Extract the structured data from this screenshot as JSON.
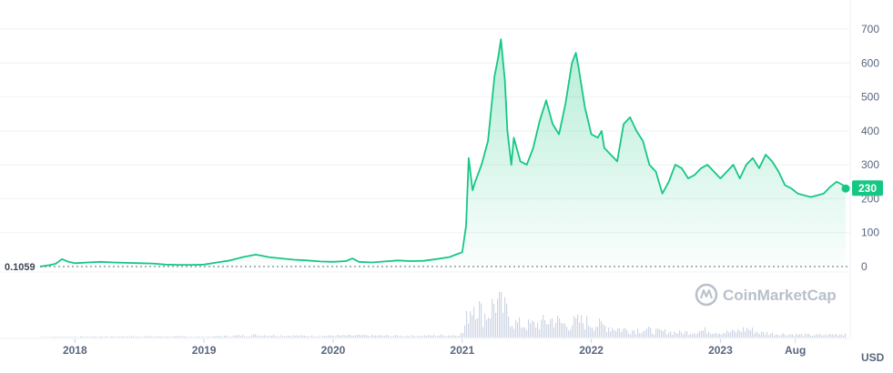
{
  "chart_data": {
    "type": "area",
    "unit_label": "USD",
    "ylim": [
      0,
      700
    ],
    "y_ticks": [
      {
        "value": 0,
        "label": "0"
      },
      {
        "value": 100,
        "label": "100"
      },
      {
        "value": 200,
        "label": "200"
      },
      {
        "value": 300,
        "label": "300"
      },
      {
        "value": 400,
        "label": "400"
      },
      {
        "value": 500,
        "label": "500"
      },
      {
        "value": 600,
        "label": "600"
      },
      {
        "value": 700,
        "label": "700"
      }
    ],
    "x_ticks": [
      {
        "value": 2018.0,
        "label": "2018"
      },
      {
        "value": 2019.0,
        "label": "2019"
      },
      {
        "value": 2020.0,
        "label": "2020"
      },
      {
        "value": 2021.0,
        "label": "2021"
      },
      {
        "value": 2022.0,
        "label": "2022"
      },
      {
        "value": 2023.0,
        "label": "2023"
      },
      {
        "value": 2023.58,
        "label": "Aug"
      }
    ],
    "xlim": [
      2017.73,
      2023.97
    ],
    "start_value_label": "0.1059",
    "current_price_label": "230",
    "current_price": 230,
    "series": [
      {
        "x": [
          2017.73,
          2017.8,
          2017.85,
          2017.9,
          2017.95,
          2018.0,
          2018.1,
          2018.2,
          2018.3,
          2018.4,
          2018.5,
          2018.6,
          2018.7,
          2018.8,
          2018.9,
          2019.0,
          2019.1,
          2019.2,
          2019.3,
          2019.4,
          2019.45,
          2019.5,
          2019.6,
          2019.7,
          2019.8,
          2019.9,
          2020.0,
          2020.1,
          2020.15,
          2020.2,
          2020.3,
          2020.4,
          2020.5,
          2020.6,
          2020.7,
          2020.8,
          2020.9,
          2020.95,
          2021.0,
          2021.03,
          2021.05,
          2021.08,
          2021.1,
          2021.15,
          2021.2,
          2021.25,
          2021.28,
          2021.3,
          2021.33,
          2021.35,
          2021.38,
          2021.4,
          2021.45,
          2021.5,
          2021.55,
          2021.6,
          2021.65,
          2021.7,
          2021.75,
          2021.8,
          2021.85,
          2021.88,
          2021.9,
          2021.95,
          2022.0,
          2022.05,
          2022.08,
          2022.1,
          2022.15,
          2022.2,
          2022.25,
          2022.3,
          2022.35,
          2022.4,
          2022.45,
          2022.5,
          2022.55,
          2022.6,
          2022.65,
          2022.7,
          2022.75,
          2022.8,
          2022.85,
          2022.9,
          2022.95,
          2023.0,
          2023.05,
          2023.1,
          2023.15,
          2023.2,
          2023.25,
          2023.3,
          2023.35,
          2023.4,
          2023.45,
          2023.5,
          2023.55,
          2023.6,
          2023.65,
          2023.7,
          2023.75,
          2023.8,
          2023.85,
          2023.9,
          2023.95,
          2023.97
        ],
        "y": [
          0.1059,
          4,
          8,
          22,
          14,
          10,
          12,
          14,
          12,
          11,
          10,
          9,
          6,
          5,
          5,
          6,
          12,
          18,
          28,
          35,
          32,
          28,
          24,
          20,
          18,
          15,
          14,
          16,
          24,
          14,
          12,
          15,
          18,
          16,
          17,
          22,
          28,
          35,
          42,
          120,
          320,
          225,
          250,
          300,
          370,
          560,
          620,
          670,
          550,
          400,
          300,
          380,
          310,
          300,
          350,
          430,
          490,
          420,
          390,
          480,
          600,
          630,
          590,
          470,
          390,
          380,
          400,
          350,
          330,
          310,
          420,
          440,
          400,
          370,
          300,
          280,
          215,
          250,
          300,
          290,
          260,
          270,
          290,
          300,
          280,
          260,
          280,
          300,
          260,
          300,
          320,
          290,
          330,
          310,
          280,
          240,
          230,
          215,
          210,
          205,
          210,
          215,
          235,
          250,
          240,
          230
        ]
      }
    ],
    "volume": {
      "x": [
        2017.73,
        2018.0,
        2018.5,
        2019.0,
        2019.4,
        2019.8,
        2020.2,
        2020.6,
        2020.95,
        2021.0,
        2021.05,
        2021.1,
        2021.15,
        2021.2,
        2021.25,
        2021.3,
        2021.35,
        2021.4,
        2021.5,
        2021.6,
        2021.7,
        2021.8,
        2021.9,
        2022.0,
        2022.1,
        2022.2,
        2022.3,
        2022.4,
        2022.5,
        2022.6,
        2022.7,
        2022.8,
        2022.9,
        2023.0,
        2023.1,
        2023.2,
        2023.3,
        2023.4,
        2023.5,
        2023.6,
        2023.7,
        2023.8,
        2023.9,
        2023.97
      ],
      "v": [
        0.01,
        0.02,
        0.03,
        0.02,
        0.06,
        0.04,
        0.05,
        0.04,
        0.06,
        0.1,
        0.7,
        0.95,
        0.55,
        0.6,
        0.9,
        0.75,
        0.6,
        0.35,
        0.3,
        0.35,
        0.45,
        0.3,
        0.4,
        0.35,
        0.28,
        0.22,
        0.18,
        0.2,
        0.15,
        0.14,
        0.12,
        0.15,
        0.18,
        0.12,
        0.14,
        0.22,
        0.12,
        0.1,
        0.08,
        0.07,
        0.06,
        0.06,
        0.08,
        0.1
      ]
    }
  },
  "watermark": {
    "text": "CoinMarketCap",
    "icon": "coinmarketcap-logo-icon"
  },
  "colors": {
    "line": "#16c784",
    "fill_top": "#16c784",
    "grid": "#eff2f5",
    "volume": "#cfd6e4",
    "axis_text": "#58667e"
  }
}
